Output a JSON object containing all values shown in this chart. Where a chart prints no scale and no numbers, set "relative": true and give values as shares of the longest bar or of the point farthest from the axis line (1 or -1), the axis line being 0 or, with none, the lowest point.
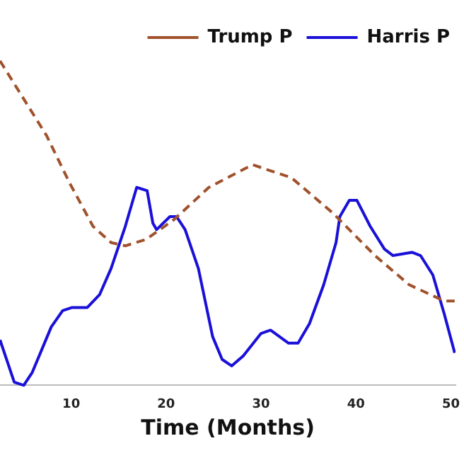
{
  "chart_data": {
    "type": "line",
    "xlabel": "Time (Months)",
    "relative": true,
    "xlim": [
      2.5,
      50.5
    ],
    "xticks": [
      10,
      20,
      30,
      40,
      50
    ],
    "grid": false,
    "legend": "top right",
    "marker": "none",
    "series": [
      {
        "name": "Trump P",
        "color": "#a0522d",
        "line_style": "dashed",
        "x": [
          2.5,
          7.4,
          9.9,
          12.3,
          14.2,
          15.7,
          17.9,
          20.8,
          24.5,
          29.1,
          33.2,
          37.6,
          42,
          45.6,
          49.3,
          50.4
        ],
        "values": [
          1.0,
          0.77,
          0.62,
          0.49,
          0.44,
          0.43,
          0.45,
          0.51,
          0.61,
          0.68,
          0.64,
          0.53,
          0.4,
          0.31,
          0.26,
          0.26
        ]
      },
      {
        "name": "Harris P",
        "color": "#1a10d8",
        "line_style": "solid",
        "x": [
          2.5,
          4,
          5,
          5.9,
          7.9,
          9.1,
          10.1,
          11.7,
          13,
          14.2,
          15.7,
          16.9,
          18,
          18.6,
          19,
          20.4,
          21.1,
          22,
          23.4,
          24.9,
          25.9,
          26.9,
          28.1,
          30,
          31,
          32.9,
          33.9,
          35.1,
          36.6,
          37.9,
          38.3,
          39.3,
          40.1,
          41.5,
          43,
          43.9,
          45.9,
          46.8,
          48.1,
          49.3,
          50.4
        ],
        "values": [
          0.14,
          0.01,
          0,
          0.04,
          0.18,
          0.23,
          0.24,
          0.24,
          0.28,
          0.36,
          0.49,
          0.61,
          0.6,
          0.5,
          0.48,
          0.52,
          0.52,
          0.48,
          0.36,
          0.15,
          0.08,
          0.06,
          0.09,
          0.16,
          0.17,
          0.13,
          0.13,
          0.19,
          0.31,
          0.44,
          0.52,
          0.57,
          0.57,
          0.49,
          0.42,
          0.4,
          0.41,
          0.4,
          0.34,
          0.22,
          0.1
        ]
      }
    ]
  }
}
